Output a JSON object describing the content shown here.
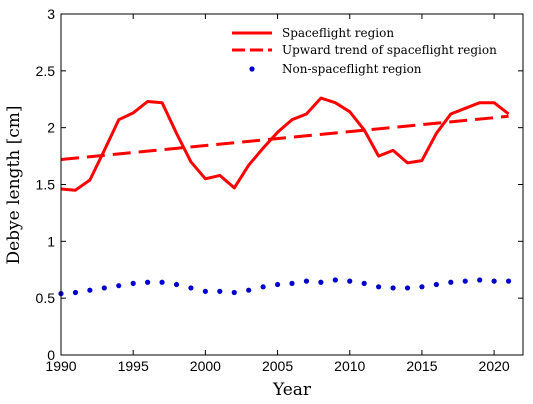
{
  "chart_data": {
    "type": "line",
    "xlabel": "Year",
    "ylabel": "Debye length [cm]",
    "xlim": [
      1990,
      2022
    ],
    "ylim": [
      0,
      3
    ],
    "xticks": [
      1990,
      1995,
      2000,
      2005,
      2010,
      2015,
      2020
    ],
    "xtick_labels": [
      "1990",
      "1995",
      "2000",
      "2005",
      "2010",
      "2015",
      "2020"
    ],
    "yticks": [
      0,
      0.5,
      1,
      1.5,
      2,
      2.5,
      3
    ],
    "ytick_labels": [
      "0",
      "0.5",
      "1",
      "1.5",
      "2",
      "2.5",
      "3"
    ],
    "grid": false,
    "legend_position": "top-right",
    "series": [
      {
        "name": "Spaceflight region",
        "style": "solid-line",
        "color": "#ff0000",
        "x": [
          1990,
          1991,
          1992,
          1993,
          1994,
          1995,
          1996,
          1997,
          1998,
          1999,
          2000,
          2001,
          2002,
          2003,
          2004,
          2005,
          2006,
          2007,
          2008,
          2009,
          2010,
          2011,
          2012,
          2013,
          2014,
          2015,
          2016,
          2017,
          2018,
          2019,
          2020,
          2021
        ],
        "y": [
          1.46,
          1.45,
          1.54,
          1.8,
          2.07,
          2.13,
          2.23,
          2.22,
          1.95,
          1.7,
          1.55,
          1.58,
          1.47,
          1.67,
          1.82,
          1.96,
          2.07,
          2.12,
          2.26,
          2.22,
          2.14,
          1.98,
          1.75,
          1.8,
          1.69,
          1.71,
          1.95,
          2.12,
          2.17,
          2.22,
          2.22,
          2.12
        ]
      },
      {
        "name": "Upward trend of spaceflight region",
        "style": "dashed-line",
        "color": "#ff0000",
        "x": [
          1990,
          2021
        ],
        "y": [
          1.72,
          2.1
        ]
      },
      {
        "name": "Non-spaceflight region",
        "style": "dots",
        "color": "#0000cc",
        "x": [
          1990,
          1991,
          1992,
          1993,
          1994,
          1995,
          1996,
          1997,
          1998,
          1999,
          2000,
          2001,
          2002,
          2003,
          2004,
          2005,
          2006,
          2007,
          2008,
          2009,
          2010,
          2011,
          2012,
          2013,
          2014,
          2015,
          2016,
          2017,
          2018,
          2019,
          2020,
          2021
        ],
        "y": [
          0.54,
          0.55,
          0.57,
          0.59,
          0.61,
          0.63,
          0.64,
          0.64,
          0.62,
          0.59,
          0.56,
          0.56,
          0.55,
          0.57,
          0.6,
          0.62,
          0.63,
          0.65,
          0.64,
          0.66,
          0.65,
          0.63,
          0.6,
          0.59,
          0.59,
          0.6,
          0.62,
          0.64,
          0.65,
          0.66,
          0.65,
          0.65
        ]
      }
    ]
  }
}
